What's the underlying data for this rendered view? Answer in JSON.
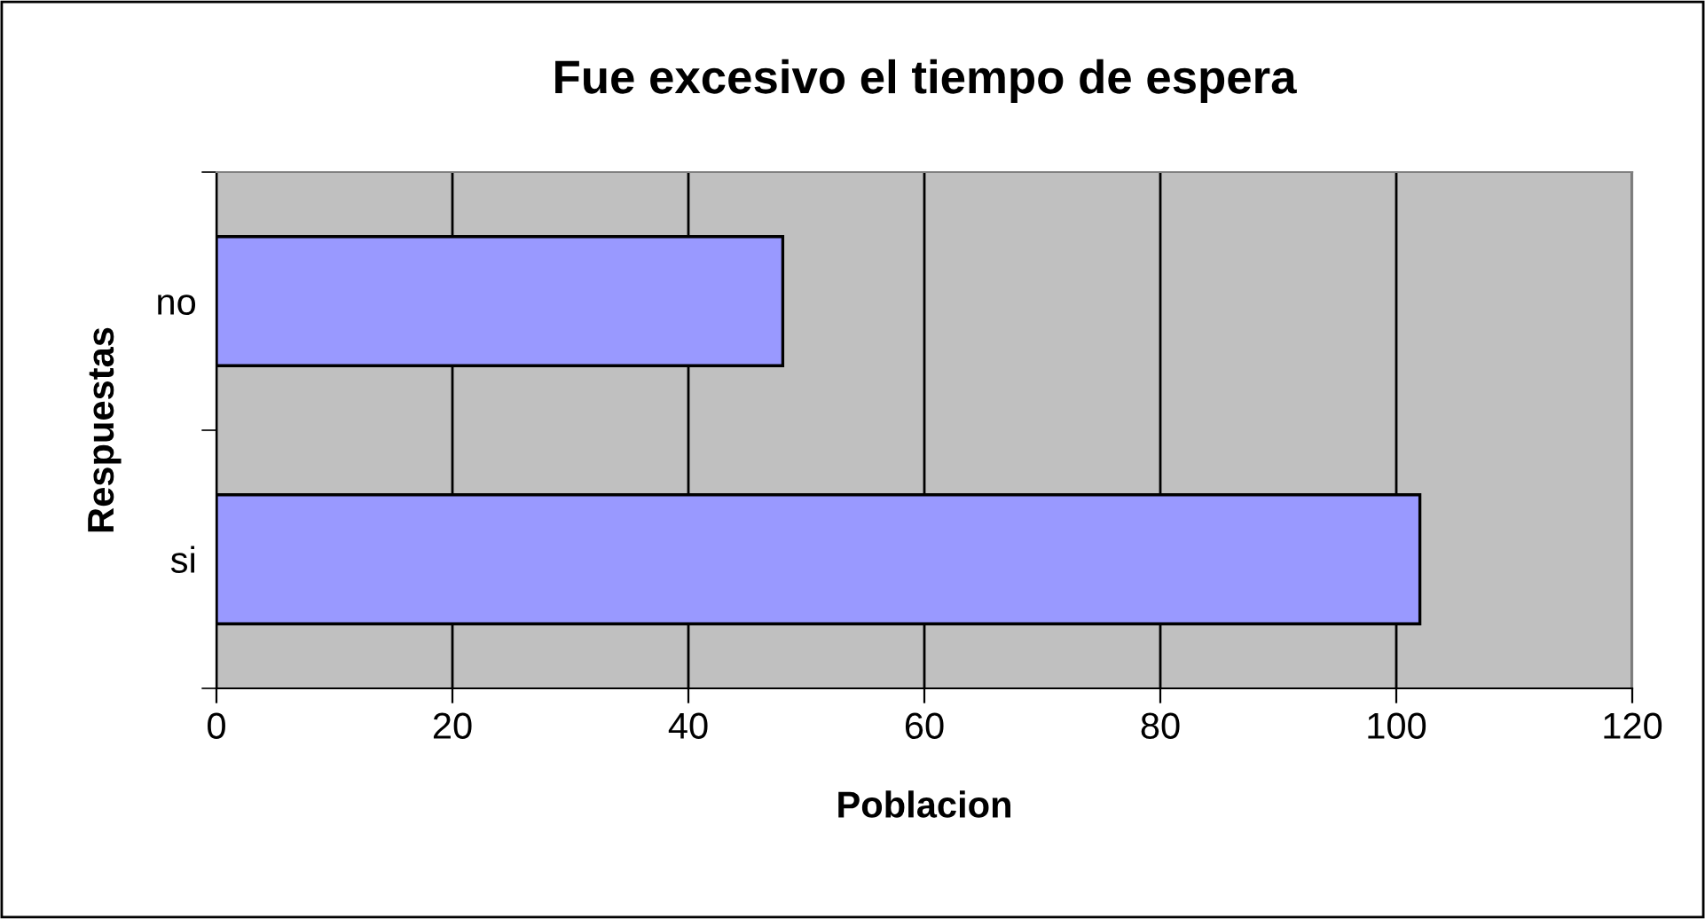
{
  "chart_data": {
    "type": "bar",
    "orientation": "horizontal",
    "title": "Fue excesivo el tiempo de espera",
    "xlabel": "Poblacion",
    "ylabel": "Respuestas",
    "categories": [
      "no",
      "si"
    ],
    "series": [
      {
        "color": "#9999ff",
        "values": [
          48,
          102
        ]
      }
    ],
    "xlim": [
      0,
      120
    ],
    "xticks": [
      0,
      20,
      40,
      60,
      80,
      100,
      120
    ],
    "grid": "x"
  }
}
